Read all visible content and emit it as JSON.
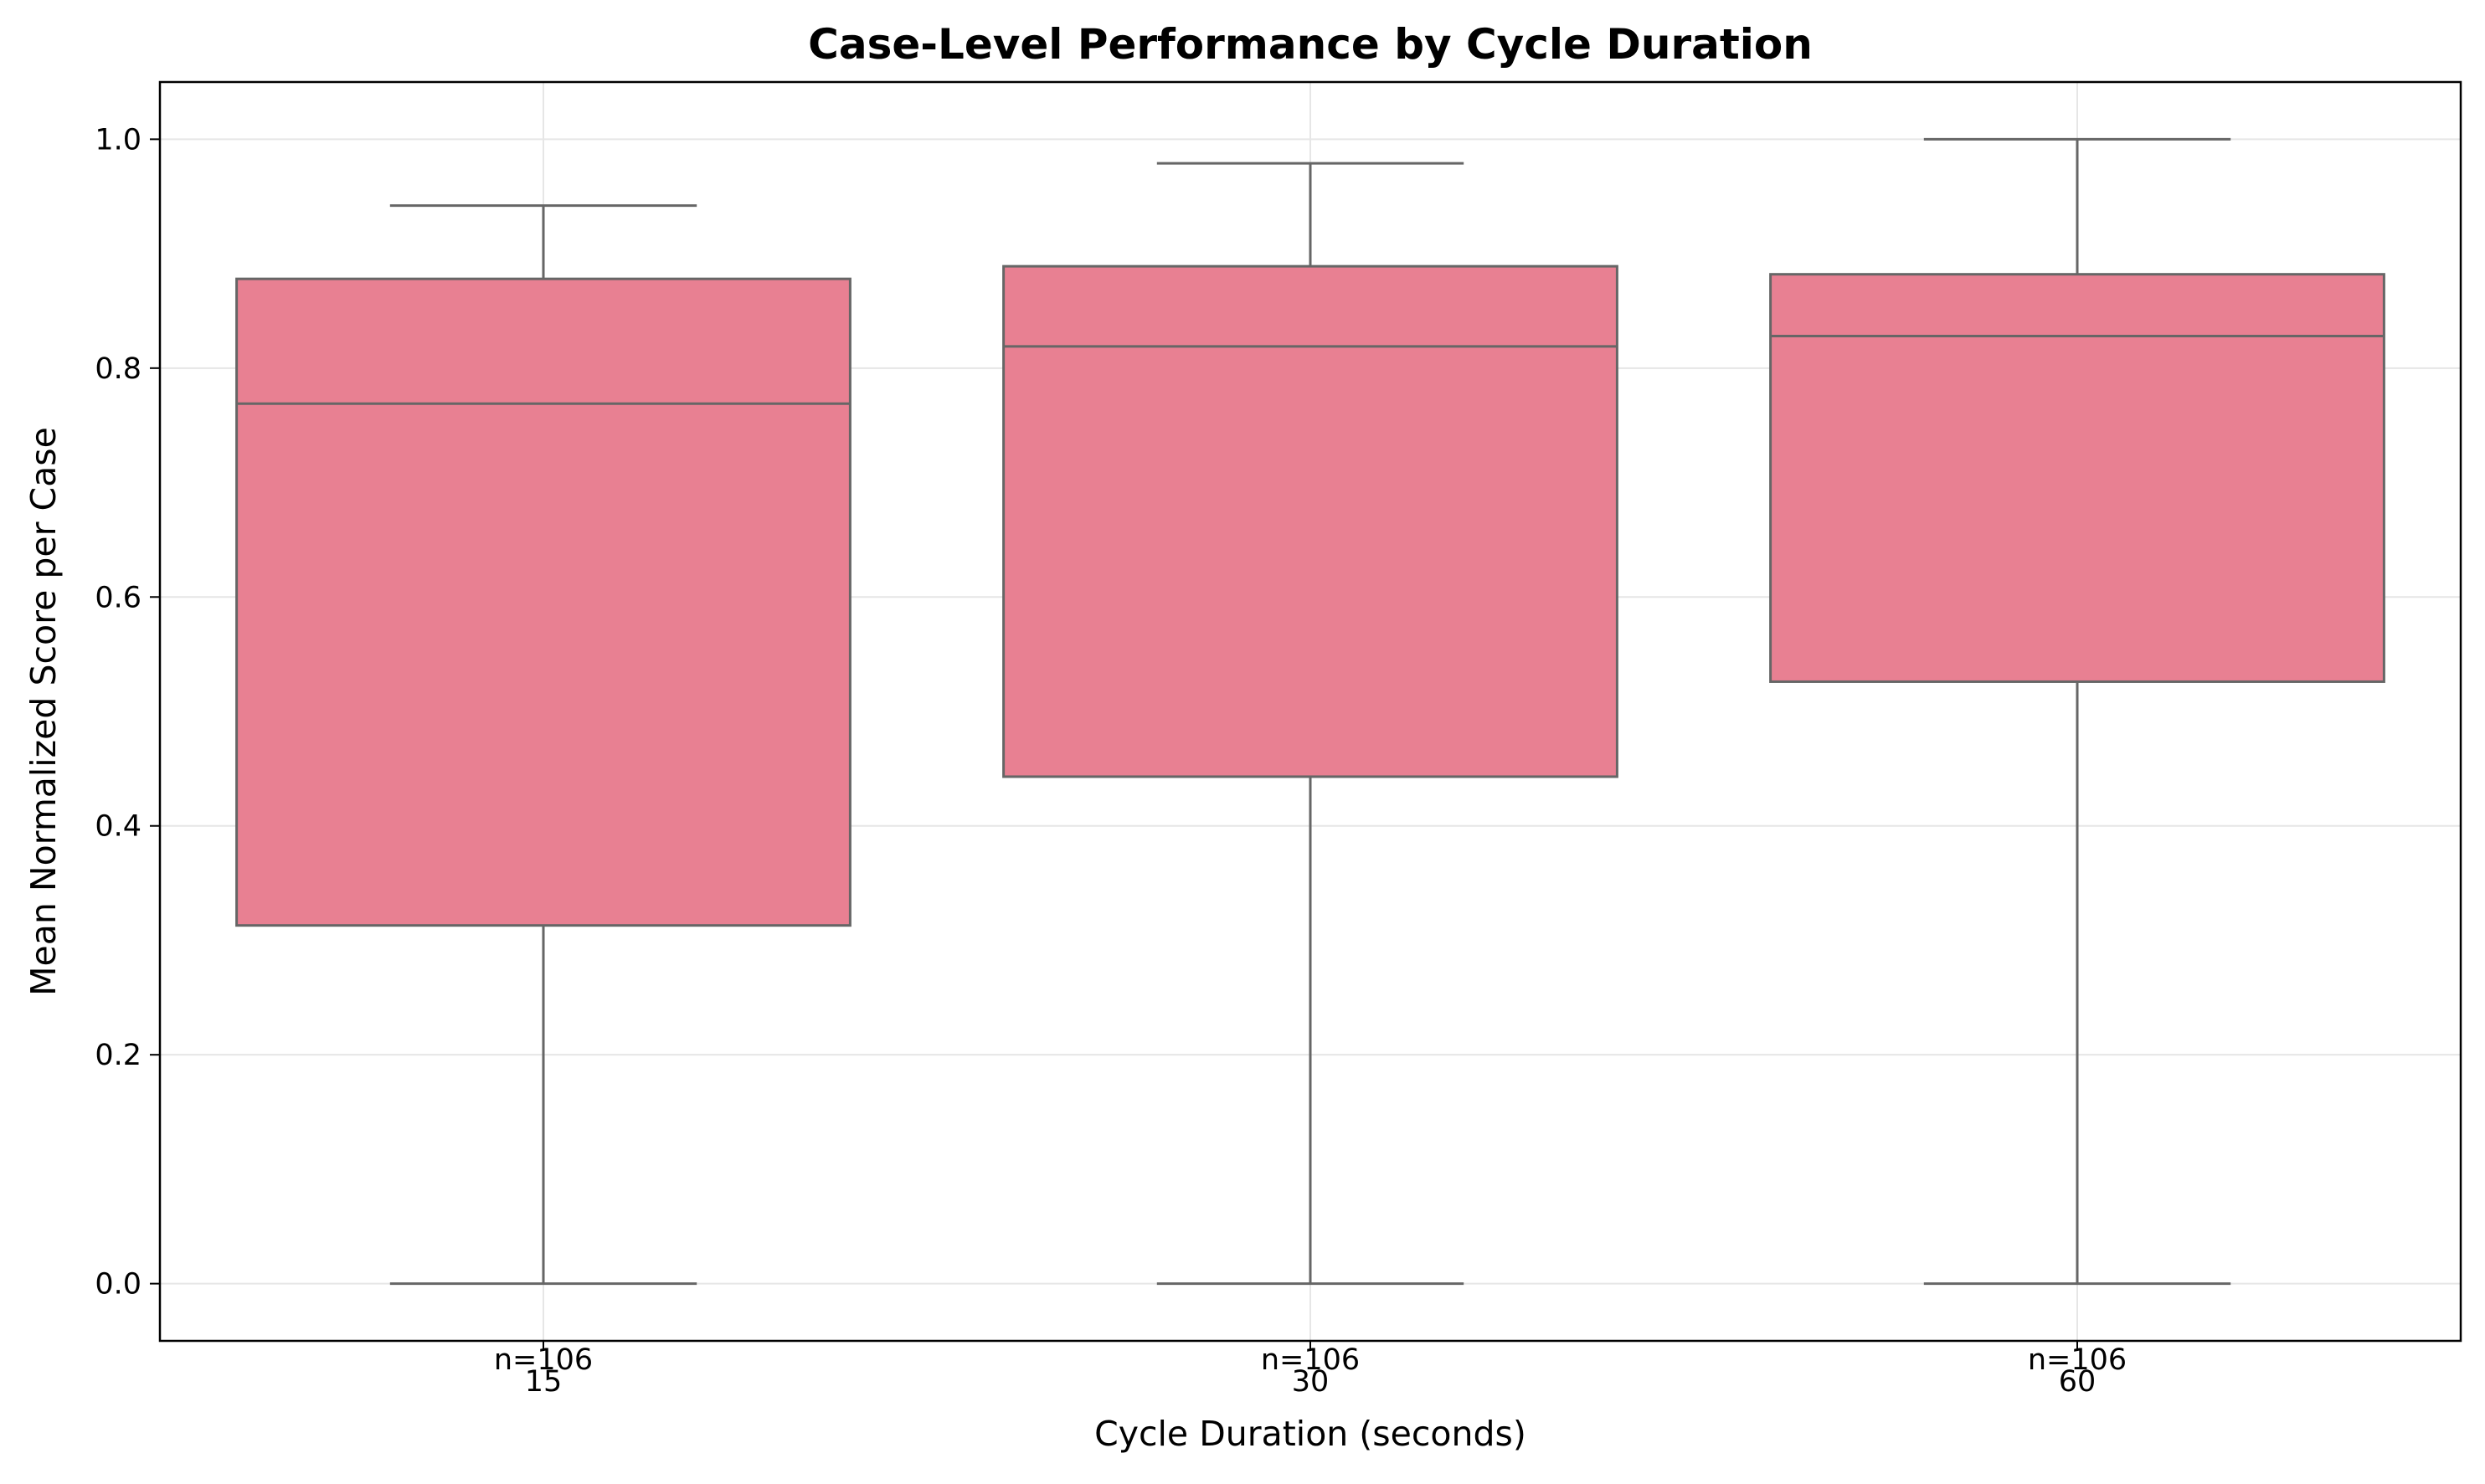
{
  "chart_data": {
    "type": "box",
    "title": "Case-Level Performance by Cycle Duration",
    "xlabel": "Cycle Duration (seconds)",
    "ylabel": "Mean Normalized Score per Case",
    "categories": [
      "15",
      "30",
      "60"
    ],
    "ylim": [
      -0.05,
      1.05
    ],
    "yticks": [
      "0.0",
      "0.2",
      "0.4",
      "0.6",
      "0.8",
      "1.0"
    ],
    "grid": true,
    "box_color": "#e88092",
    "line_color": "#666666",
    "boxes": [
      {
        "category": "15",
        "min": 0.0,
        "q1": 0.313,
        "median": 0.769,
        "q3": 0.878,
        "max": 0.942,
        "n_label": "n=106"
      },
      {
        "category": "30",
        "min": 0.0,
        "q1": 0.443,
        "median": 0.819,
        "q3": 0.889,
        "max": 0.979,
        "n_label": "n=106"
      },
      {
        "category": "60",
        "min": 0.0,
        "q1": 0.526,
        "median": 0.828,
        "q3": 0.882,
        "max": 1.0,
        "n_label": "n=106"
      }
    ]
  }
}
